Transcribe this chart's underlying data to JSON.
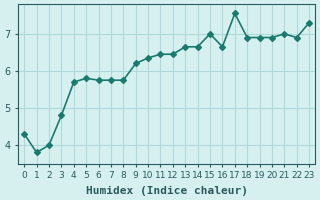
{
  "x": [
    0,
    1,
    2,
    3,
    4,
    5,
    6,
    7,
    8,
    9,
    10,
    11,
    12,
    13,
    14,
    15,
    16,
    17,
    18,
    19,
    20,
    21,
    22,
    23
  ],
  "y": [
    4.3,
    3.8,
    4.0,
    4.8,
    5.7,
    5.8,
    5.75,
    5.75,
    5.75,
    6.2,
    6.35,
    6.45,
    6.45,
    6.65,
    6.65,
    7.0,
    6.65,
    7.55,
    6.9,
    6.9,
    6.9,
    7.0,
    6.9,
    7.3
  ],
  "line_color": "#1a7a6e",
  "marker": "D",
  "marker_size": 3,
  "background_color": "#d6f0f0",
  "grid_color": "#b0d8d8",
  "xlabel": "Humidex (Indice chaleur)",
  "xlabel_fontsize": 8,
  "ylabel_ticks": [
    4,
    5,
    6,
    7
  ],
  "xtick_labels": [
    "0",
    "1",
    "2",
    "3",
    "4",
    "5",
    "6",
    "7",
    "8",
    "9",
    "10",
    "11",
    "12",
    "13",
    "14",
    "15",
    "16",
    "17",
    "18",
    "19",
    "20",
    "21",
    "22",
    "23"
  ],
  "xlim": [
    -0.5,
    23.5
  ],
  "ylim": [
    3.5,
    7.8
  ],
  "tick_fontsize": 7,
  "tick_color": "#2a5a5a",
  "line_width": 1.2
}
